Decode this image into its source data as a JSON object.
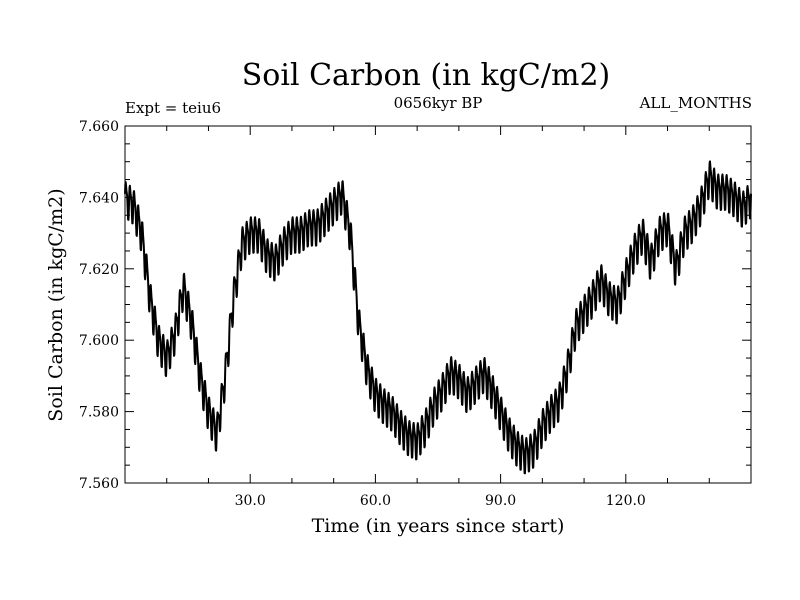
{
  "chart_data": {
    "type": "line",
    "title": "Soil Carbon (in kgC/m2)",
    "subtitle": "0656kyr BP",
    "left_label": "Expt = teiu6",
    "right_label": "ALL_MONTHS",
    "xlabel": "Time (in years since start)",
    "ylabel": "Soil Carbon (in kgC/m2)",
    "xlim": [
      0,
      150
    ],
    "ylim": [
      7.56,
      7.66
    ],
    "xticks": [
      30,
      60,
      90,
      120
    ],
    "xtick_labels": [
      "30.0",
      "60.0",
      "90.0",
      "120.0"
    ],
    "yticks": [
      7.56,
      7.58,
      7.6,
      7.62,
      7.64,
      7.66
    ],
    "ytick_labels": [
      "7.560",
      "7.580",
      "7.600",
      "7.620",
      "7.640",
      "7.660"
    ],
    "series": [
      {
        "name": "Soil Carbon",
        "seasonal_amplitude": 0.0045,
        "x": [
          0,
          2,
          4,
          6,
          8,
          10,
          12,
          14,
          16,
          18,
          20,
          22,
          24,
          26,
          28,
          30,
          32,
          34,
          36,
          38,
          40,
          42,
          44,
          46,
          48,
          50,
          52,
          54,
          56,
          58,
          60,
          62,
          64,
          66,
          68,
          70,
          72,
          74,
          76,
          78,
          80,
          82,
          84,
          86,
          88,
          90,
          92,
          94,
          96,
          98,
          100,
          102,
          104,
          106,
          108,
          110,
          112,
          114,
          116,
          118,
          120,
          122,
          124,
          126,
          128,
          130,
          132,
          134,
          136,
          138,
          140,
          142,
          144,
          146,
          148,
          150
        ],
        "values": [
          7.64,
          7.638,
          7.63,
          7.612,
          7.6,
          7.595,
          7.602,
          7.615,
          7.605,
          7.59,
          7.58,
          7.574,
          7.59,
          7.612,
          7.627,
          7.63,
          7.63,
          7.624,
          7.622,
          7.627,
          7.63,
          7.63,
          7.632,
          7.632,
          7.635,
          7.638,
          7.641,
          7.63,
          7.605,
          7.592,
          7.585,
          7.582,
          7.58,
          7.576,
          7.573,
          7.572,
          7.576,
          7.582,
          7.586,
          7.591,
          7.589,
          7.585,
          7.588,
          7.591,
          7.586,
          7.58,
          7.574,
          7.57,
          7.568,
          7.57,
          7.576,
          7.58,
          7.583,
          7.592,
          7.604,
          7.608,
          7.612,
          7.617,
          7.612,
          7.61,
          7.618,
          7.625,
          7.63,
          7.622,
          7.63,
          7.632,
          7.62,
          7.63,
          7.633,
          7.638,
          7.646,
          7.642,
          7.642,
          7.64,
          7.637,
          7.64
        ]
      }
    ]
  },
  "colors": {
    "line": "#000000",
    "axis": "#000000",
    "background": "#ffffff"
  }
}
